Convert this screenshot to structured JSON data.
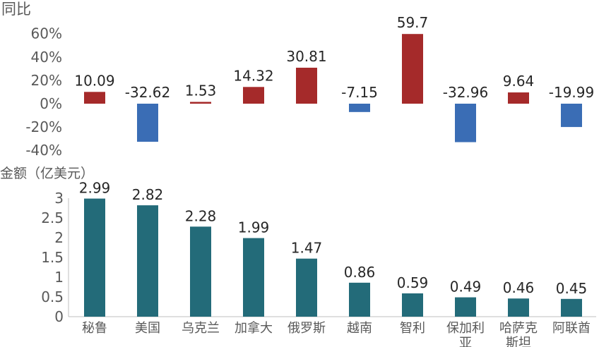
{
  "chart_data": [
    {
      "type": "bar",
      "ylabel": "同比",
      "categories": [
        "秘鲁",
        "美国",
        "乌克兰",
        "加拿大",
        "俄罗斯",
        "越南",
        "智利",
        "保加利亚",
        "哈萨克斯坦",
        "阿联酋"
      ],
      "values": [
        10.09,
        -32.62,
        1.53,
        14.32,
        30.81,
        -7.15,
        59.7,
        -32.96,
        9.64,
        -19.99
      ],
      "value_labels": [
        "10.09",
        "-32.62",
        "1.53",
        "14.32",
        "30.81",
        "-7.15",
        "59.7",
        "-32.96",
        "9.64",
        "-19.99"
      ],
      "yticks": [
        "60%",
        "40%",
        "20%",
        "0%",
        "-20%",
        "-40%"
      ],
      "ytick_values": [
        60,
        40,
        20,
        0,
        -20,
        -40
      ],
      "ylim": [
        -40,
        60
      ],
      "colors": {
        "positive": "#a52a2a",
        "negative": "#3a6db5"
      },
      "grid": false
    },
    {
      "type": "bar",
      "ylabel": "金额（亿美元）",
      "categories": [
        "秘鲁",
        "美国",
        "乌克兰",
        "加拿大",
        "俄罗斯",
        "越南",
        "智利",
        "保加利亚",
        "哈萨克斯坦",
        "阿联酋"
      ],
      "category_lines": [
        [
          "秘鲁"
        ],
        [
          "美国"
        ],
        [
          "乌克兰"
        ],
        [
          "加拿大"
        ],
        [
          "俄罗斯"
        ],
        [
          "越南"
        ],
        [
          "智利"
        ],
        [
          "保加利",
          "亚"
        ],
        [
          "哈萨克",
          "斯坦"
        ],
        [
          "阿联酋"
        ]
      ],
      "values": [
        2.99,
        2.82,
        2.28,
        1.99,
        1.47,
        0.86,
        0.59,
        0.49,
        0.46,
        0.45
      ],
      "value_labels": [
        "2.99",
        "2.82",
        "2.28",
        "1.99",
        "1.47",
        "0.86",
        "0.59",
        "0.49",
        "0.46",
        "0.45"
      ],
      "yticks": [
        "3",
        "2.5",
        "2",
        "1.5",
        "1",
        "0.5",
        "0"
      ],
      "ytick_values": [
        3,
        2.5,
        2,
        1.5,
        1,
        0.5,
        0
      ],
      "ylim": [
        0,
        3
      ],
      "colors": {
        "bar": "#236b79",
        "axis": "#bfbfbf"
      },
      "grid": false
    }
  ]
}
